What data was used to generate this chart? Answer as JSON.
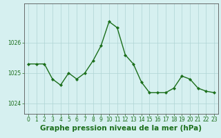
{
  "x": [
    0,
    1,
    2,
    3,
    4,
    5,
    6,
    7,
    8,
    9,
    10,
    11,
    12,
    13,
    14,
    15,
    16,
    17,
    18,
    19,
    20,
    21,
    22,
    23
  ],
  "y": [
    1025.3,
    1025.3,
    1025.3,
    1024.8,
    1024.6,
    1025.0,
    1024.8,
    1025.0,
    1025.4,
    1025.9,
    1026.7,
    1026.5,
    1025.6,
    1025.3,
    1024.7,
    1024.35,
    1024.35,
    1024.35,
    1024.5,
    1024.9,
    1024.8,
    1024.5,
    1024.4,
    1024.35
  ],
  "line_color": "#1a6e1a",
  "marker": "D",
  "marker_size": 2.2,
  "line_width": 1.0,
  "bg_color": "#d6f0f0",
  "grid_color": "#aed4d4",
  "axis_color": "#555555",
  "tick_color": "#1a6e1a",
  "xlabel": "Graphe pression niveau de la mer (hPa)",
  "xlabel_color": "#1a6e1a",
  "xlabel_fontsize": 7.5,
  "ylabel_ticks": [
    1024,
    1025,
    1026
  ],
  "xlim": [
    -0.5,
    23.5
  ],
  "ylim": [
    1023.65,
    1027.3
  ],
  "xtick_labels": [
    "0",
    "1",
    "2",
    "3",
    "4",
    "5",
    "6",
    "7",
    "8",
    "9",
    "10",
    "11",
    "12",
    "13",
    "14",
    "15",
    "16",
    "17",
    "18",
    "19",
    "20",
    "21",
    "22",
    "23"
  ],
  "tick_fontsize": 5.5
}
